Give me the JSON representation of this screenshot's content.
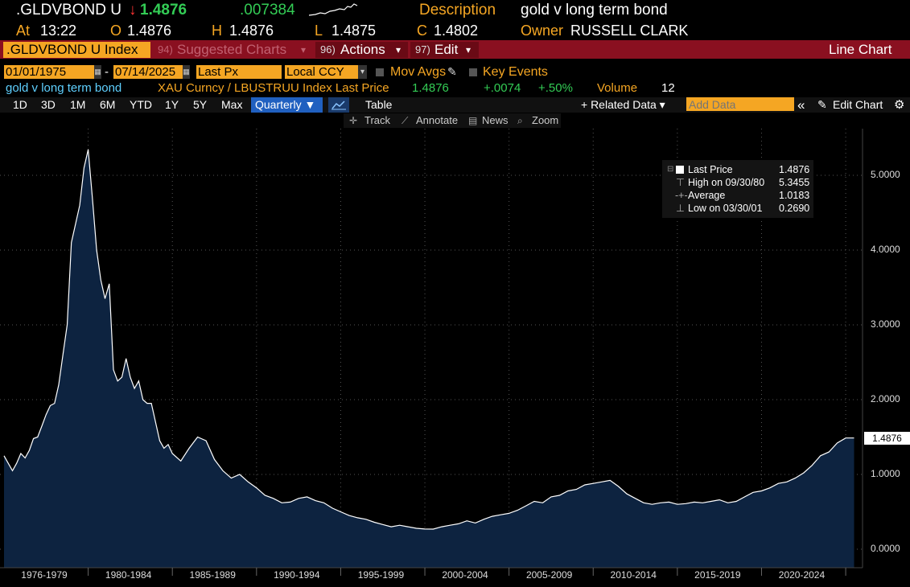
{
  "header": {
    "ticker": ".GLDVBOND U",
    "arrow": "↓",
    "last": "1.4876",
    "change": ".007384",
    "desc_label": "Description",
    "desc_value": "gold v long term bond",
    "at_label": "At",
    "time": "13:22",
    "open_label": "O",
    "open": "1.4876",
    "high_label": "H",
    "high": "1.4876",
    "low_label": "L",
    "low": "1.4875",
    "close_label": "C",
    "close": "1.4802",
    "owner_label": "Owner",
    "owner": "RUSSELL CLARK"
  },
  "menubar": {
    "security": ".GLDVBOND U Index",
    "suggested_num": "94)",
    "suggested": "Suggested Charts",
    "actions_num": "96)",
    "actions": "Actions",
    "edit_num": "97)",
    "edit": "Edit",
    "chart_type": "Line Chart"
  },
  "controls": {
    "start_date": "01/01/1975",
    "dash": "-",
    "end_date": "07/14/2025",
    "field": "Last Px",
    "currency": "Local CCY",
    "mov_avgs": "Mov Avgs",
    "key_events": "Key Events"
  },
  "info": {
    "name": "gold v long term bond",
    "formula": "XAU Curncy / LBUSTRUU Index Last Price",
    "price": "1.4876",
    "chg": "+.0074",
    "pct": "+.50%",
    "vol_label": "Volume",
    "vol": "12"
  },
  "periods": [
    "1D",
    "3D",
    "1M",
    "6M",
    "YTD",
    "1Y",
    "5Y",
    "Max"
  ],
  "frequency": "Quarterly ▼",
  "toolbar": {
    "table": "Table",
    "related": "+ Related Data ▾",
    "add_data_placeholder": "Add Data",
    "collapse": "«",
    "edit_chart": "Edit Chart",
    "track": "Track",
    "annotate": "Annotate",
    "news": "News",
    "zoom": "Zoom"
  },
  "legend": {
    "last_label": "Last Price",
    "last_value": "1.4876",
    "high_label": "High on 09/30/80",
    "high_value": "5.3455",
    "avg_label": "Average",
    "avg_value": "1.0183",
    "low_label": "Low on 03/30/01",
    "low_value": "0.2690"
  },
  "colors": {
    "accent": "#f5a623",
    "bar": "#8a1020",
    "fill": "#0d2340",
    "line": "#ffffff"
  },
  "chart_data": {
    "type": "area",
    "ylim": [
      -0.2,
      5.7
    ],
    "xlim": [
      1975.0,
      2026.0
    ],
    "yticks": [
      "0.0000",
      "1.0000",
      "2.0000",
      "3.0000",
      "4.0000",
      "5.0000"
    ],
    "ytick_values": [
      0,
      1,
      2,
      3,
      4,
      5
    ],
    "last_label": "1.4876",
    "xticks": [
      {
        "label": "1976-1979",
        "center": 1977.5
      },
      {
        "label": "1980-1984",
        "center": 1982.5
      },
      {
        "label": "1985-1989",
        "center": 1987.5
      },
      {
        "label": "1990-1994",
        "center": 1992.5
      },
      {
        "label": "1995-1999",
        "center": 1997.5
      },
      {
        "label": "2000-2004",
        "center": 2002.5
      },
      {
        "label": "2005-2009",
        "center": 2007.5
      },
      {
        "label": "2010-2014",
        "center": 2012.5
      },
      {
        "label": "2015-2019",
        "center": 2017.5
      },
      {
        "label": "2020-2024",
        "center": 2022.5
      }
    ],
    "xgrid": [
      1980,
      1985,
      1990,
      1995,
      2000,
      2005,
      2010,
      2015,
      2020,
      2025
    ],
    "x": [
      1975.0,
      1975.25,
      1975.5,
      1975.75,
      1976.0,
      1976.25,
      1976.5,
      1976.75,
      1977.0,
      1977.25,
      1977.5,
      1977.75,
      1978.0,
      1978.25,
      1978.5,
      1978.75,
      1979.0,
      1979.25,
      1979.5,
      1979.75,
      1980.0,
      1980.25,
      1980.5,
      1980.75,
      1981.0,
      1981.25,
      1981.5,
      1981.75,
      1982.0,
      1982.25,
      1982.5,
      1982.75,
      1983.0,
      1983.25,
      1983.5,
      1983.75,
      1984.0,
      1984.25,
      1984.5,
      1984.75,
      1985.0,
      1985.5,
      1986.0,
      1986.5,
      1987.0,
      1987.5,
      1988.0,
      1988.5,
      1989.0,
      1989.5,
      1990.0,
      1990.5,
      1991.0,
      1991.5,
      1992.0,
      1992.5,
      1993.0,
      1993.5,
      1994.0,
      1994.5,
      1995.0,
      1995.5,
      1996.0,
      1996.5,
      1997.0,
      1997.5,
      1998.0,
      1998.5,
      1999.0,
      1999.5,
      2000.0,
      2000.5,
      2001.0,
      2001.5,
      2002.0,
      2002.5,
      2003.0,
      2003.5,
      2004.0,
      2004.5,
      2005.0,
      2005.5,
      2006.0,
      2006.5,
      2007.0,
      2007.5,
      2008.0,
      2008.5,
      2009.0,
      2009.5,
      2010.0,
      2010.5,
      2011.0,
      2011.5,
      2012.0,
      2012.5,
      2013.0,
      2013.5,
      2014.0,
      2014.5,
      2015.0,
      2015.5,
      2016.0,
      2016.5,
      2017.0,
      2017.5,
      2018.0,
      2018.5,
      2019.0,
      2019.5,
      2020.0,
      2020.5,
      2021.0,
      2021.5,
      2022.0,
      2022.5,
      2023.0,
      2023.5,
      2024.0,
      2024.5,
      2025.0,
      2025.5
    ],
    "values": [
      1.25,
      1.15,
      1.05,
      1.15,
      1.28,
      1.22,
      1.32,
      1.48,
      1.5,
      1.65,
      1.8,
      1.92,
      1.95,
      2.2,
      2.6,
      3.0,
      4.1,
      4.35,
      4.6,
      5.1,
      5.3455,
      4.7,
      4.0,
      3.6,
      3.35,
      3.55,
      2.4,
      2.25,
      2.3,
      2.55,
      2.3,
      2.15,
      2.25,
      2.0,
      1.95,
      1.95,
      1.7,
      1.45,
      1.35,
      1.4,
      1.28,
      1.18,
      1.35,
      1.5,
      1.45,
      1.2,
      1.05,
      0.95,
      1.0,
      0.9,
      0.82,
      0.72,
      0.68,
      0.62,
      0.63,
      0.68,
      0.7,
      0.65,
      0.62,
      0.55,
      0.5,
      0.45,
      0.42,
      0.4,
      0.36,
      0.33,
      0.3,
      0.32,
      0.3,
      0.28,
      0.27,
      0.269,
      0.3,
      0.32,
      0.34,
      0.38,
      0.35,
      0.4,
      0.44,
      0.46,
      0.48,
      0.52,
      0.58,
      0.64,
      0.62,
      0.7,
      0.72,
      0.78,
      0.8,
      0.86,
      0.88,
      0.9,
      0.92,
      0.84,
      0.74,
      0.68,
      0.62,
      0.6,
      0.62,
      0.63,
      0.6,
      0.61,
      0.63,
      0.62,
      0.64,
      0.66,
      0.62,
      0.64,
      0.7,
      0.76,
      0.78,
      0.82,
      0.88,
      0.9,
      0.95,
      1.02,
      1.12,
      1.25,
      1.3,
      1.42,
      1.4876,
      1.4876
    ]
  }
}
